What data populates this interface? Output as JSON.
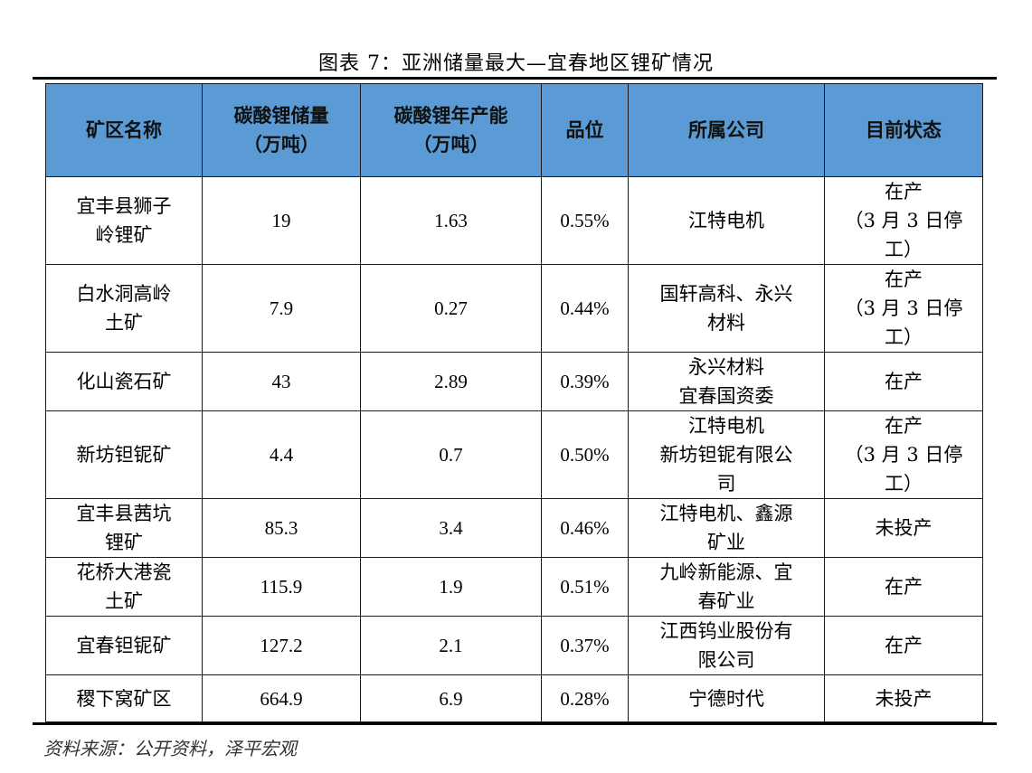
{
  "caption": "图表 7：亚洲储量最大—宜春地区锂矿情况",
  "table": {
    "headers": [
      "矿区名称",
      "碳酸锂储量\n（万吨）",
      "碳酸锂年产能\n（万吨）",
      "品位",
      "所属公司",
      "目前状态"
    ],
    "rows": [
      [
        "宜丰县狮子\n岭锂矿",
        "19",
        "1.63",
        "0.55%",
        "江特电机",
        "在产\n（3 月 3 日停\n工）"
      ],
      [
        "白水洞高岭\n土矿",
        "7.9",
        "0.27",
        "0.44%",
        "国轩高科、永兴\n材料",
        "在产\n（3 月 3 日停\n工）"
      ],
      [
        "化山瓷石矿",
        "43",
        "2.89",
        "0.39%",
        "永兴材料\n宜春国资委",
        "在产"
      ],
      [
        "新坊钽铌矿",
        "4.4",
        "0.7",
        "0.50%",
        "江特电机\n新坊钽铌有限公\n司",
        "在产\n（3 月 3 日停\n工）"
      ],
      [
        "宜丰县茜坑\n锂矿",
        "85.3",
        "3.4",
        "0.46%",
        "江特电机、鑫源\n矿业",
        "未投产"
      ],
      [
        "花桥大港瓷\n土矿",
        "115.9",
        "1.9",
        "0.51%",
        "九岭新能源、宜\n春矿业",
        "在产"
      ],
      [
        "宜春钽铌矿",
        "127.2",
        "2.1",
        "0.37%",
        "江西钨业股份有\n限公司",
        "在产"
      ],
      [
        "稷下窝矿区",
        "664.9",
        "6.9",
        "0.28%",
        "宁德时代",
        "未投产"
      ]
    ]
  },
  "source": "资料来源：公开资料，泽平宏观",
  "colors": {
    "header_bg": "#5b9bd5"
  }
}
